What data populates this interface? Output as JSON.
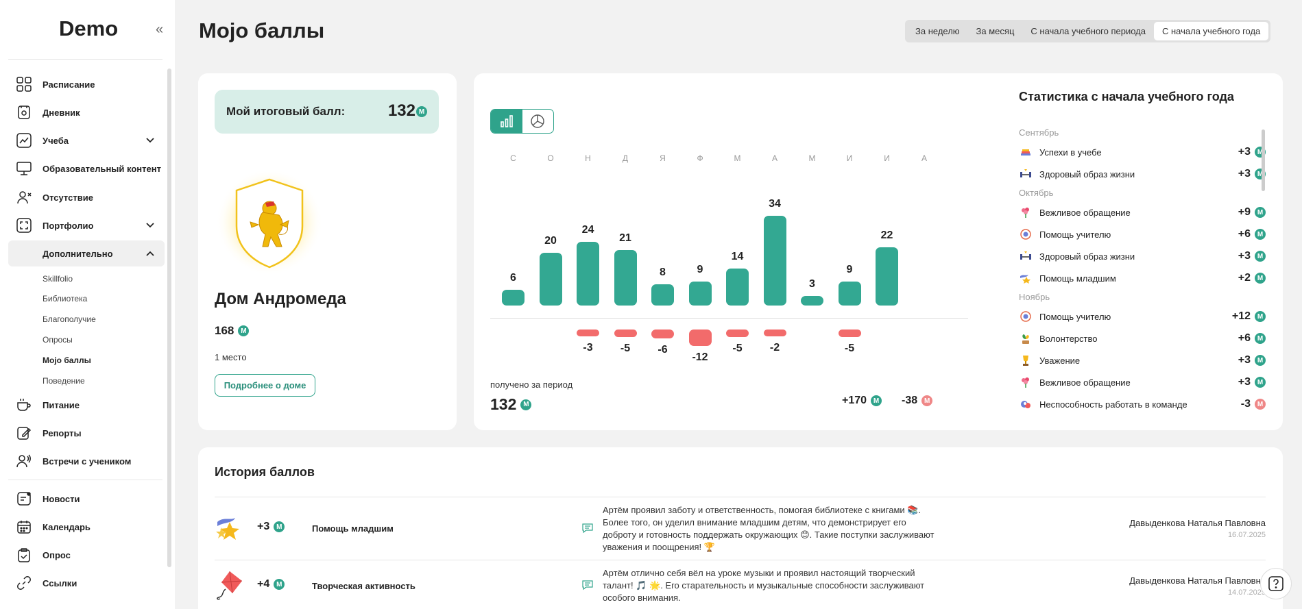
{
  "sidebar": {
    "logo": "Demo",
    "items": [
      {
        "label": "Расписание"
      },
      {
        "label": "Дневник"
      },
      {
        "label": "Учеба"
      },
      {
        "label": "Образовательный контент"
      },
      {
        "label": "Отсутствие"
      },
      {
        "label": "Портфолио"
      },
      {
        "label": "Дополнительно"
      },
      {
        "label": "Питание"
      },
      {
        "label": "Репорты"
      },
      {
        "label": "Встречи с учеником"
      },
      {
        "label": "Новости"
      },
      {
        "label": "Календарь"
      },
      {
        "label": "Опрос"
      },
      {
        "label": "Ссылки"
      }
    ],
    "sub_items": [
      {
        "label": "Skillfolio"
      },
      {
        "label": "Библиотека"
      },
      {
        "label": "Благополучие"
      },
      {
        "label": "Опросы"
      },
      {
        "label": "Mojo баллы"
      },
      {
        "label": "Поведение"
      }
    ]
  },
  "header": {
    "title": "Mojo баллы",
    "tabs": [
      {
        "label": "За неделю"
      },
      {
        "label": "За месяц"
      },
      {
        "label": "С начала учебного периода"
      },
      {
        "label": "С начала учебного года"
      }
    ],
    "selected_tab": "С начала учебного года"
  },
  "summary": {
    "total_label": "Мой итоговый балл:",
    "total_value": "132",
    "badge": "M",
    "house_name": "Дом Андромеда",
    "house_points": "168",
    "house_place": "1 место",
    "more_button": "Подробнее о доме"
  },
  "chart_data": {
    "type": "bar",
    "categories": [
      "С",
      "О",
      "Н",
      "Д",
      "Я",
      "Ф",
      "М",
      "А",
      "М",
      "И",
      "И",
      "А"
    ],
    "series": [
      {
        "values": [
          6,
          20,
          24,
          21,
          8,
          9,
          14,
          34,
          3,
          9,
          22,
          null
        ]
      },
      {
        "values": [
          null,
          null,
          -3,
          -5,
          -6,
          -12,
          -5,
          -2,
          null,
          -5,
          null,
          null
        ]
      }
    ],
    "positive_labels": [
      "6",
      "20",
      "24",
      "21",
      "8",
      "9",
      "14",
      "34",
      "3",
      "9",
      "22",
      ""
    ],
    "negative_labels": [
      "",
      "",
      "-3",
      "-5",
      "-6",
      "-12",
      "-5",
      "-2",
      "",
      "-5",
      "",
      ""
    ],
    "period_label": "получено за период",
    "period_total": "132",
    "plus_total": "+170",
    "minus_total": "-38",
    "colors": {
      "positive": "#33a892",
      "negative": "#f26b6b"
    }
  },
  "stats": {
    "title": "Статистика с начала учебного года",
    "groups": [
      {
        "month": "Сентябрь",
        "rows": [
          {
            "name": "Успехи в учебе",
            "value": "+3",
            "icon": "books-icon"
          },
          {
            "name": "Здоровый образ жизни",
            "value": "+3",
            "icon": "dumbbell-icon"
          }
        ]
      },
      {
        "month": "Октябрь",
        "rows": [
          {
            "name": "Вежливое обращение",
            "value": "+9",
            "icon": "flower-icon"
          },
          {
            "name": "Помощь учителю",
            "value": "+6",
            "icon": "medal-icon"
          },
          {
            "name": "Здоровый образ жизни",
            "value": "+3",
            "icon": "dumbbell-icon"
          },
          {
            "name": "Помощь младшим",
            "value": "+2",
            "icon": "stars-icon"
          }
        ]
      },
      {
        "month": "Ноябрь",
        "rows": [
          {
            "name": "Помощь учителю",
            "value": "+12",
            "icon": "medal-icon"
          },
          {
            "name": "Волонтерство",
            "value": "+6",
            "icon": "sprout-icon"
          },
          {
            "name": "Уважение",
            "value": "+3",
            "icon": "trophy-icon"
          },
          {
            "name": "Вежливое обращение",
            "value": "+3",
            "icon": "flower-icon"
          },
          {
            "name": "Неспособность работать в команде",
            "value": "-3",
            "icon": "broken-icon"
          }
        ]
      }
    ]
  },
  "history": {
    "title": "История баллов",
    "rows": [
      {
        "points": "+3",
        "name": "Помощь младшим",
        "icon": "stars-icon",
        "text": "Артём проявил заботу и ответственность, помогая библиотеке с книгами 📚. Более того, он уделил внимание младшим детям, что демонстрирует его доброту и готовность поддержать окружающих 😊. Такие поступки заслуживают уважения и поощрения! 🏆",
        "author": "Давыденкова Наталья Павловна",
        "date": "16.07.2025"
      },
      {
        "points": "+4",
        "name": "Творческая активность",
        "icon": "kite-icon",
        "text": "Артём отлично себя вёл на уроке музыки и проявил настоящий творческий талант! 🎵 🌟. Его старательность и музыкальные способности заслуживают особого внимания.",
        "author": "Давыденкова Наталья Павловна",
        "date": "14.07.2025"
      }
    ]
  },
  "help": "?"
}
